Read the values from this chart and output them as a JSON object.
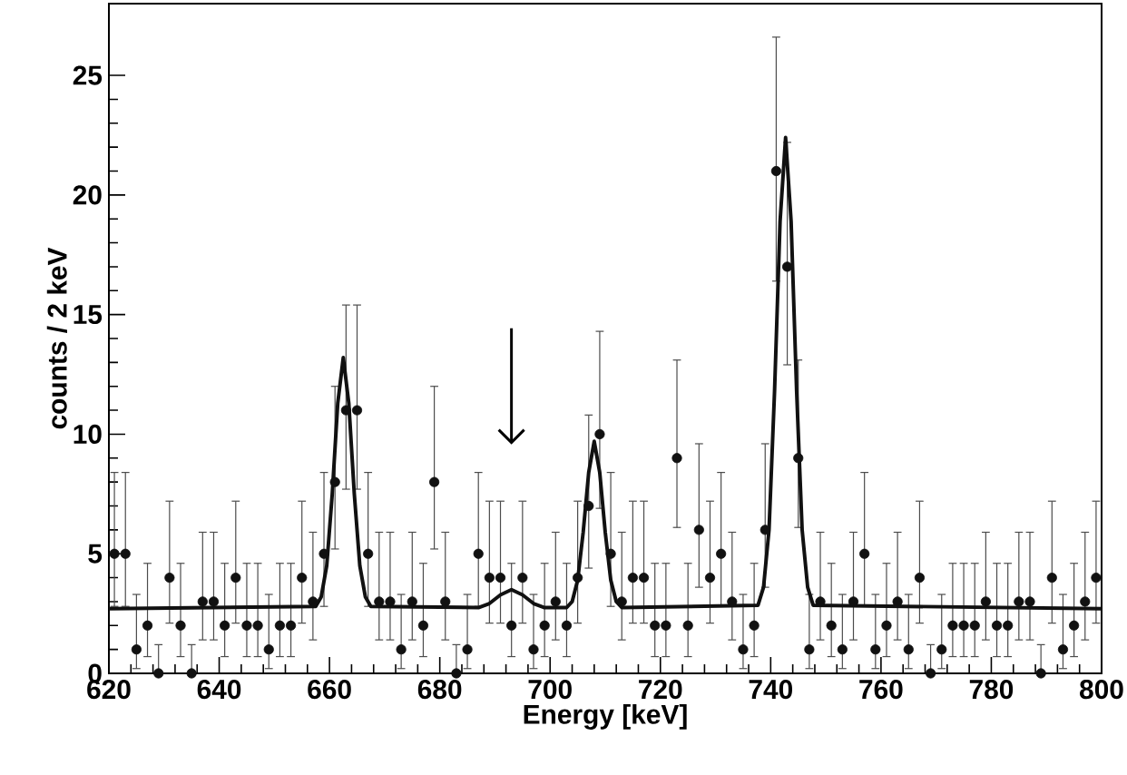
{
  "chart_data": {
    "type": "scatter",
    "xlabel": "Energy [keV]",
    "ylabel": "counts / 2 keV",
    "xlim": [
      620,
      800
    ],
    "ylim": [
      0,
      28
    ],
    "xticks": [
      620,
      640,
      660,
      680,
      700,
      720,
      740,
      760,
      780,
      800
    ],
    "yticks": [
      0,
      5,
      10,
      15,
      20,
      25
    ],
    "grid": false,
    "series": [
      {
        "marker": "circle",
        "color": "#111111",
        "x": [
          621,
          623,
          625,
          627,
          629,
          631,
          633,
          635,
          637,
          639,
          641,
          643,
          645,
          647,
          649,
          651,
          653,
          655,
          657,
          659,
          661,
          663,
          665,
          667,
          669,
          671,
          673,
          675,
          677,
          679,
          681,
          683,
          685,
          687,
          689,
          691,
          693,
          695,
          697,
          699,
          701,
          703,
          705,
          707,
          709,
          711,
          713,
          715,
          717,
          719,
          721,
          723,
          725,
          727,
          729,
          731,
          733,
          735,
          737,
          739,
          741,
          743,
          745,
          747,
          749,
          751,
          753,
          755,
          757,
          759,
          761,
          763,
          765,
          767,
          769,
          771,
          773,
          775,
          777,
          779,
          781,
          783,
          785,
          787,
          789,
          791,
          793,
          795,
          797,
          799
        ],
        "values": [
          5,
          5,
          1,
          2,
          0,
          4,
          2,
          0,
          3,
          3,
          2,
          4,
          2,
          2,
          1,
          2,
          2,
          4,
          3,
          5,
          8,
          11,
          11,
          5,
          3,
          3,
          1,
          3,
          2,
          8,
          3,
          0,
          1,
          5,
          4,
          4,
          2,
          4,
          1,
          2,
          3,
          2,
          4,
          7,
          10,
          5,
          3,
          4,
          4,
          2,
          2,
          9,
          2,
          6,
          4,
          5,
          3,
          1,
          2,
          6,
          21,
          17,
          9,
          1,
          3,
          2,
          1,
          3,
          5,
          1,
          2,
          3,
          1,
          4,
          0,
          1,
          2,
          2,
          2,
          3,
          2,
          2,
          3,
          3,
          0,
          4,
          1,
          2,
          3,
          4
        ],
        "errors": [
          [
            2.8,
            8.4
          ],
          [
            2.8,
            8.4
          ],
          [
            0.2,
            3.3
          ],
          [
            0.7,
            4.6
          ],
          [
            0,
            1.2
          ],
          [
            2.1,
            7.2
          ],
          [
            0.7,
            4.6
          ],
          [
            0,
            1.2
          ],
          [
            1.4,
            5.9
          ],
          [
            1.4,
            5.9
          ],
          [
            0.7,
            4.6
          ],
          [
            2.1,
            7.2
          ],
          [
            0.7,
            4.6
          ],
          [
            0.7,
            4.6
          ],
          [
            0.2,
            3.3
          ],
          [
            0.7,
            4.6
          ],
          [
            0.7,
            4.6
          ],
          [
            2.1,
            7.2
          ],
          [
            1.4,
            5.9
          ],
          [
            2.8,
            8.4
          ],
          [
            5.2,
            12.0
          ],
          [
            7.7,
            15.4
          ],
          [
            7.7,
            15.4
          ],
          [
            2.8,
            8.4
          ],
          [
            1.4,
            5.9
          ],
          [
            1.4,
            5.9
          ],
          [
            0.2,
            3.3
          ],
          [
            1.4,
            5.9
          ],
          [
            0.7,
            4.6
          ],
          [
            5.2,
            12.0
          ],
          [
            1.4,
            5.9
          ],
          [
            0,
            1.2
          ],
          [
            0.2,
            3.3
          ],
          [
            2.8,
            8.4
          ],
          [
            2.1,
            7.2
          ],
          [
            2.1,
            7.2
          ],
          [
            0.7,
            4.6
          ],
          [
            2.1,
            7.2
          ],
          [
            0.2,
            3.3
          ],
          [
            0.7,
            4.6
          ],
          [
            1.4,
            5.9
          ],
          [
            0.7,
            4.6
          ],
          [
            2.1,
            7.2
          ],
          [
            4.4,
            10.8
          ],
          [
            6.9,
            14.3
          ],
          [
            2.8,
            8.4
          ],
          [
            1.4,
            5.9
          ],
          [
            2.1,
            7.2
          ],
          [
            2.1,
            7.2
          ],
          [
            0.7,
            4.6
          ],
          [
            0.7,
            4.6
          ],
          [
            6.1,
            13.1
          ],
          [
            0.7,
            4.6
          ],
          [
            3.6,
            9.6
          ],
          [
            2.1,
            7.2
          ],
          [
            2.8,
            8.4
          ],
          [
            1.4,
            5.9
          ],
          [
            0.2,
            3.3
          ],
          [
            0.7,
            4.6
          ],
          [
            3.6,
            9.6
          ],
          [
            16.4,
            26.6
          ],
          [
            12.9,
            22.2
          ],
          [
            6.1,
            13.1
          ],
          [
            0.2,
            3.3
          ],
          [
            1.4,
            5.9
          ],
          [
            0.7,
            4.6
          ],
          [
            0.2,
            3.3
          ],
          [
            1.4,
            5.9
          ],
          [
            2.8,
            8.4
          ],
          [
            0.2,
            3.3
          ],
          [
            0.7,
            4.6
          ],
          [
            1.4,
            5.9
          ],
          [
            0.2,
            3.3
          ],
          [
            2.1,
            7.2
          ],
          [
            0,
            1.2
          ],
          [
            0.2,
            3.3
          ],
          [
            0.7,
            4.6
          ],
          [
            0.7,
            4.6
          ],
          [
            0.7,
            4.6
          ],
          [
            1.4,
            5.9
          ],
          [
            0.7,
            4.6
          ],
          [
            0.7,
            4.6
          ],
          [
            1.4,
            5.9
          ],
          [
            1.4,
            5.9
          ],
          [
            0,
            1.2
          ],
          [
            2.1,
            7.2
          ],
          [
            0.2,
            3.3
          ],
          [
            0.7,
            4.6
          ],
          [
            1.4,
            5.9
          ],
          [
            2.1,
            7.2
          ]
        ]
      },
      {
        "type": "line",
        "marker": "none",
        "color": "#111111",
        "x": [
          620,
          657.5,
          658.5,
          659.5,
          660.5,
          661.5,
          662.5,
          663.5,
          664.5,
          665.5,
          666.5,
          667.5,
          687,
          689,
          691,
          693,
          695,
          697,
          699,
          703,
          704,
          705,
          706,
          707,
          708,
          709,
          710,
          711,
          712,
          713,
          737.7,
          738.7,
          739.7,
          740.7,
          741.7,
          742.7,
          743.7,
          744.7,
          745.7,
          746.7,
          747.7,
          800
        ],
        "values": [
          2.7,
          2.8,
          3.2,
          4.5,
          7.5,
          11.3,
          13.2,
          11.3,
          7.5,
          4.5,
          3.2,
          2.8,
          2.75,
          2.92,
          3.28,
          3.5,
          3.28,
          2.92,
          2.75,
          2.75,
          3.0,
          3.9,
          5.9,
          8.4,
          9.7,
          8.4,
          5.9,
          3.9,
          3.0,
          2.75,
          2.85,
          3.6,
          6.0,
          11.8,
          18.9,
          22.4,
          18.9,
          11.8,
          6.0,
          3.6,
          2.85,
          2.7
        ]
      }
    ]
  }
}
